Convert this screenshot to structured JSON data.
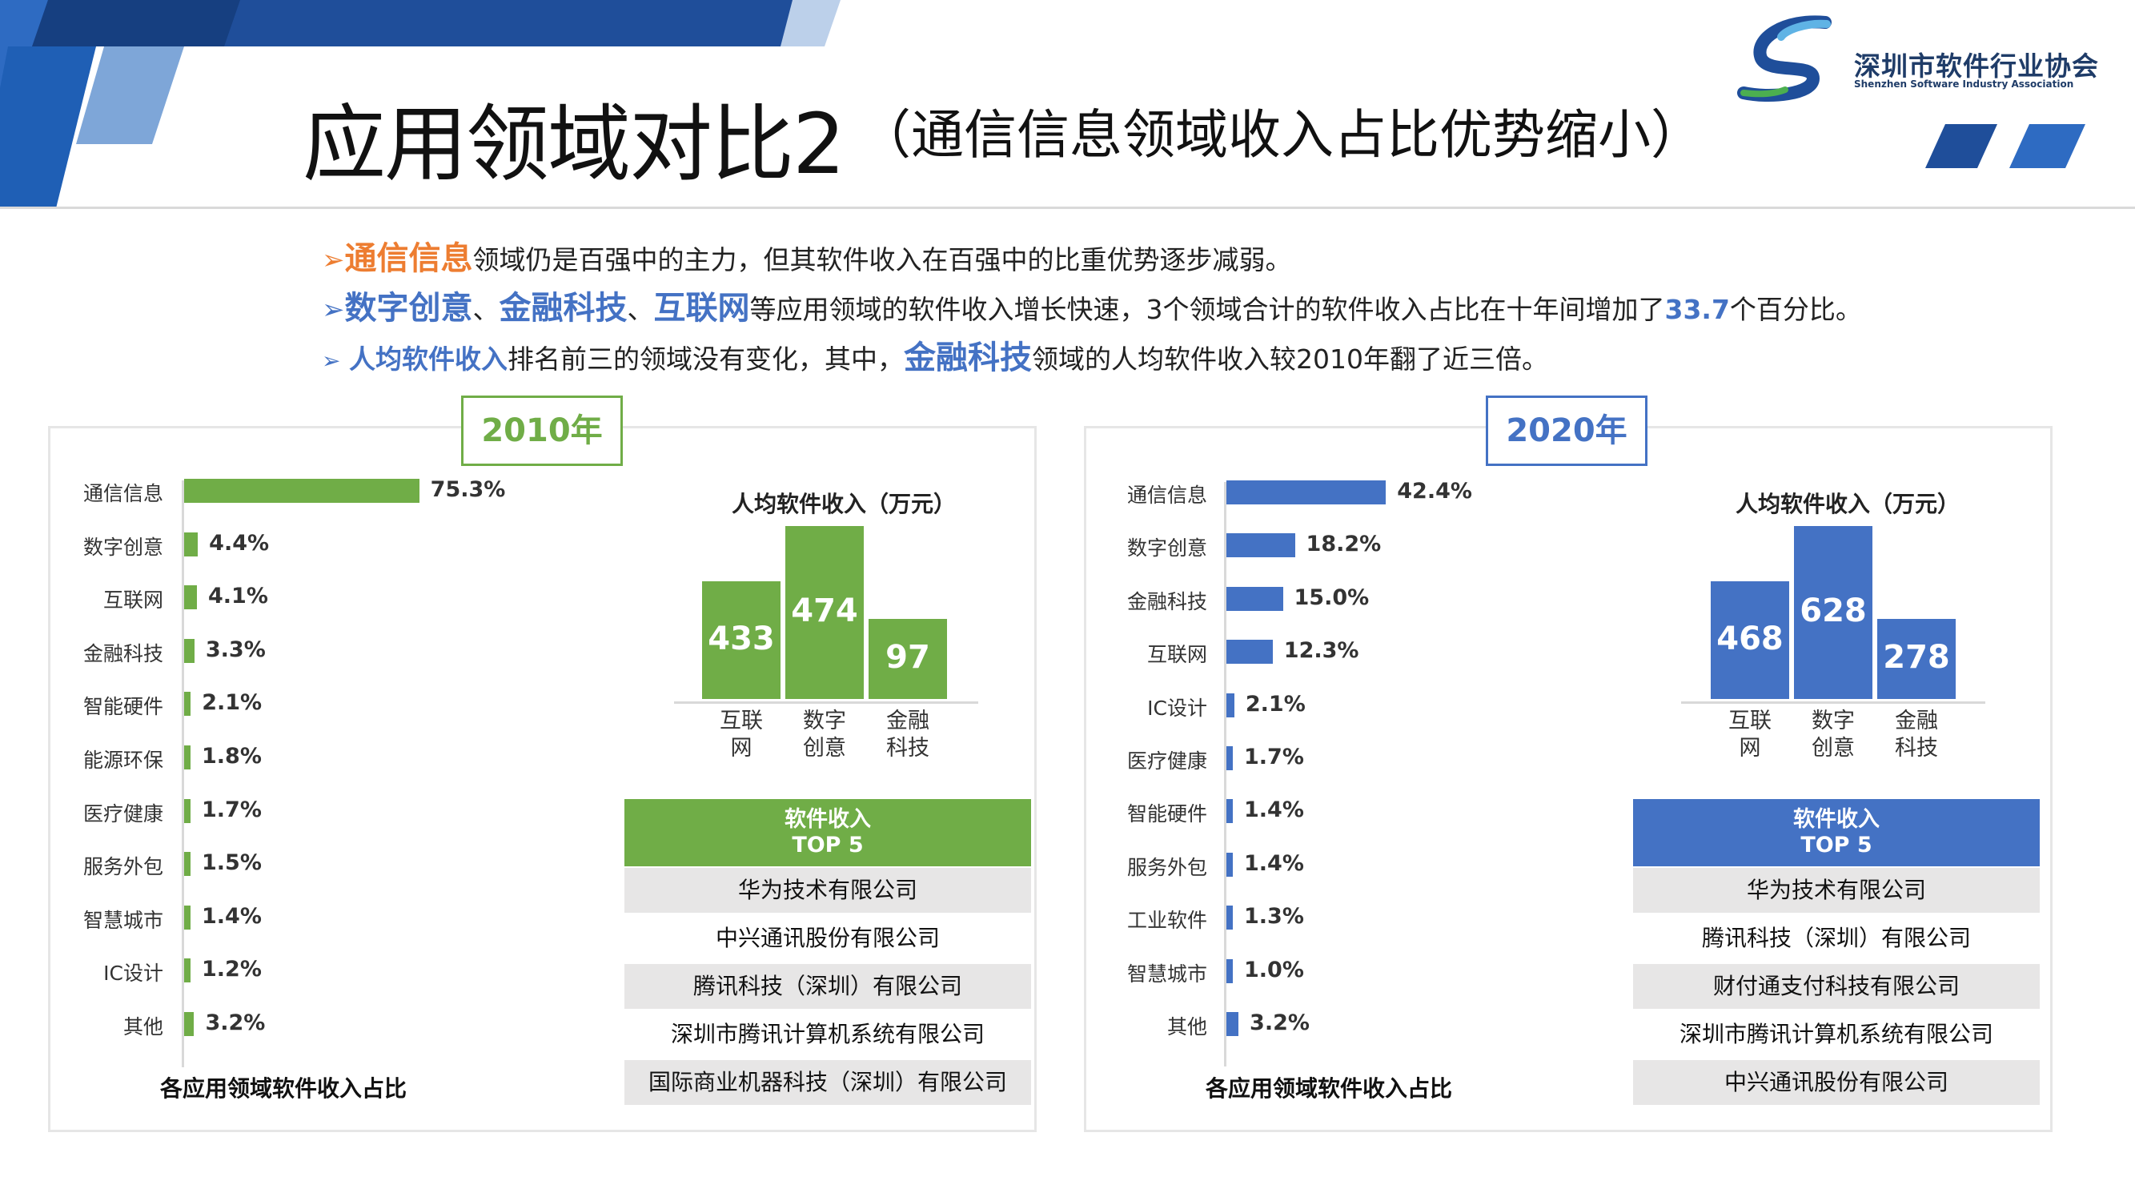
{
  "title": "应用领域对比2",
  "subtitle": "（通信信息领域收入占比优势缩小）",
  "logo": {
    "name_cn": "深圳市软件行业协会",
    "name_en": "Shenzhen Software Industry Association"
  },
  "bullets": [
    {
      "highlight": "通信信息",
      "text": "领域仍是百强中的主力，但其软件收入在百强中的比重优势逐步减弱。"
    },
    {
      "highlight1": "数字创意",
      "sep1": "、",
      "highlight2": "金融科技",
      "sep2": "、",
      "highlight3": "互联网",
      "text": "等应用领域的软件收入增长快速，3个领域合计的软件收入占比在十年间增加了",
      "number": "33.7",
      "tail": "个百分比。"
    },
    {
      "highlight": "人均软件收入",
      "text": "排名前三的领域没有变化，其中，",
      "highlight2": "金融科技",
      "tail": "领域的人均软件收入较2010年翻了近三倍。"
    }
  ],
  "colors": {
    "green": "#70ad47",
    "blue": "#4472c4",
    "orange": "#ed7d31",
    "navy": "#1f4e9a"
  },
  "panels": [
    {
      "year": "2010年",
      "chart_data": {
        "type": "bar",
        "orientation": "horizontal",
        "title": "各应用领域软件收入占比",
        "categories": [
          "通信信息",
          "数字创意",
          "互联网",
          "金融科技",
          "智能硬件",
          "能源环保",
          "医疗健康",
          "服务外包",
          "智慧城市",
          "IC设计",
          "其他"
        ],
        "values": [
          75.3,
          4.4,
          4.1,
          3.3,
          2.1,
          1.8,
          1.7,
          1.5,
          1.4,
          1.2,
          3.2
        ],
        "labels": [
          "75.3%",
          "4.4%",
          "4.1%",
          "3.3%",
          "2.1%",
          "1.8%",
          "1.7%",
          "1.5%",
          "1.4%",
          "1.2%",
          "3.2%"
        ],
        "unit": "%"
      },
      "per_capita": {
        "title": "人均软件收入（万元）",
        "chart_data": {
          "type": "bar",
          "categories": [
            "互联网",
            "数字创意",
            "金融科技"
          ],
          "category_lines": [
            [
              "互联",
              "网"
            ],
            [
              "数字",
              "创意"
            ],
            [
              "金融",
              "科技"
            ]
          ],
          "values": [
            433,
            474,
            97
          ],
          "display_heights": [
            0.58,
            0.84,
            0.4
          ]
        }
      },
      "top5": {
        "head1": "软件收入",
        "head2": "TOP 5",
        "companies": [
          "华为技术有限公司",
          "中兴通讯股份有限公司",
          "腾讯科技（深圳）有限公司",
          "深圳市腾讯计算机系统有限公司",
          "国际商业机器科技（深圳）有限公司"
        ]
      }
    },
    {
      "year": "2020年",
      "chart_data": {
        "type": "bar",
        "orientation": "horizontal",
        "title": "各应用领域软件收入占比",
        "categories": [
          "通信信息",
          "数字创意",
          "金融科技",
          "互联网",
          "IC设计",
          "医疗健康",
          "智能硬件",
          "服务外包",
          "工业软件",
          "智慧城市",
          "其他"
        ],
        "values": [
          42.4,
          18.2,
          15.0,
          12.3,
          2.1,
          1.7,
          1.4,
          1.4,
          1.3,
          1.0,
          3.2
        ],
        "labels": [
          "42.4%",
          "18.2%",
          "15.0%",
          "12.3%",
          "2.1%",
          "1.7%",
          "1.4%",
          "1.4%",
          "1.3%",
          "1.0%",
          "3.2%"
        ],
        "unit": "%"
      },
      "per_capita": {
        "title": "人均软件收入（万元）",
        "chart_data": {
          "type": "bar",
          "categories": [
            "互联网",
            "数字创意",
            "金融科技"
          ],
          "category_lines": [
            [
              "互联",
              "网"
            ],
            [
              "数字",
              "创意"
            ],
            [
              "金融",
              "科技"
            ]
          ],
          "values": [
            468,
            628,
            278
          ],
          "display_heights": [
            0.58,
            0.84,
            0.4
          ]
        }
      },
      "top5": {
        "head1": "软件收入",
        "head2": "TOP 5",
        "companies": [
          "华为技术有限公司",
          "腾讯科技（深圳）有限公司",
          "财付通支付科技有限公司",
          "深圳市腾讯计算机系统有限公司",
          "中兴通讯股份有限公司"
        ]
      }
    }
  ]
}
